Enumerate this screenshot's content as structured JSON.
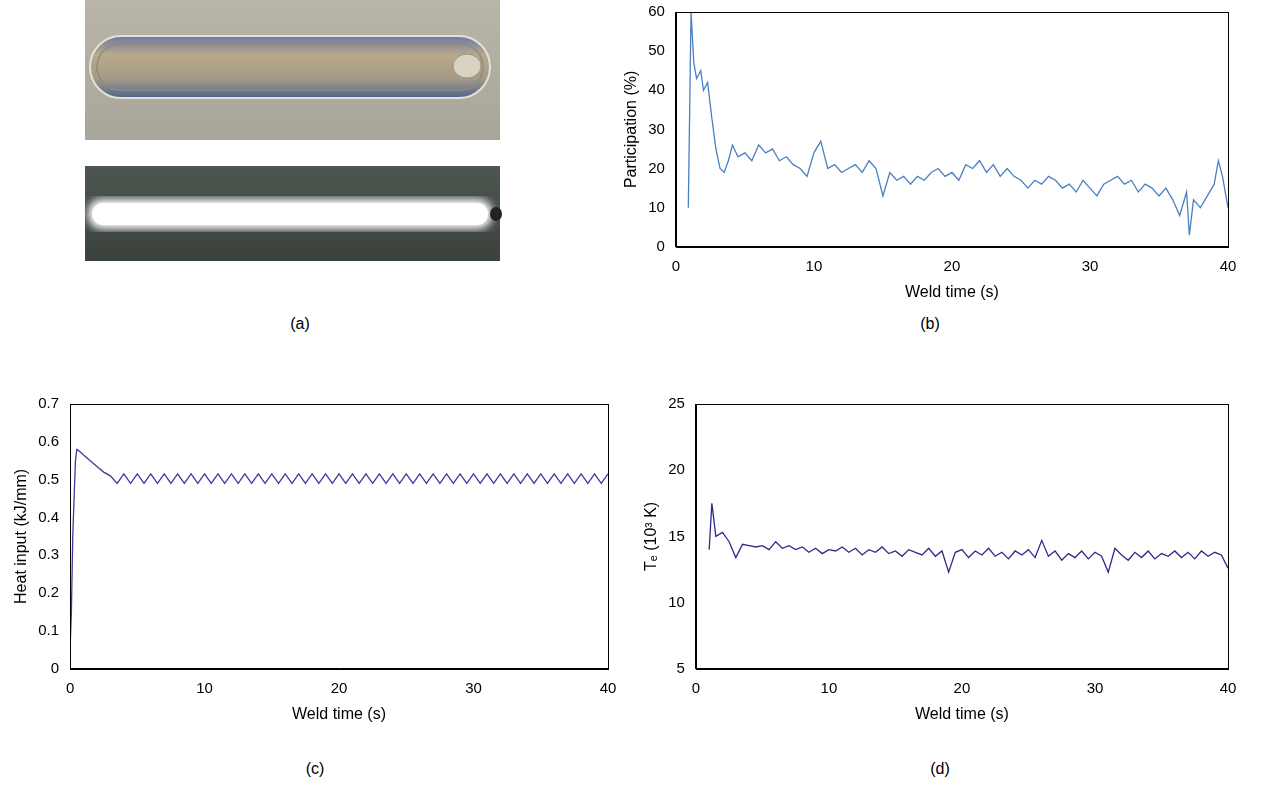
{
  "chart_data": [
    {
      "type": "image",
      "caption": "(a)"
    },
    {
      "type": "line",
      "caption": "(b)",
      "x_label": "Weld time (s)",
      "y_label": "Participation (%)",
      "xlim": [
        0,
        40
      ],
      "xticks": [
        0,
        10,
        20,
        30,
        40
      ],
      "ylim": [
        0,
        60
      ],
      "yticks": [
        0,
        10,
        20,
        30,
        40,
        50,
        60
      ],
      "grid": false,
      "series": [
        {
          "color": "#4a7fc1",
          "x": [
            0.9,
            1.1,
            1.3,
            1.5,
            1.8,
            2.0,
            2.3,
            2.6,
            2.9,
            3.2,
            3.5,
            3.8,
            4.1,
            4.5,
            5,
            5.5,
            6,
            6.5,
            7,
            7.5,
            8,
            8.5,
            9,
            9.5,
            10,
            10.5,
            11,
            11.5,
            12,
            12.5,
            13,
            13.5,
            14,
            14.5,
            15,
            15.5,
            16,
            16.5,
            17,
            17.5,
            18,
            18.5,
            19,
            19.5,
            20,
            20.5,
            21,
            21.5,
            22,
            22.5,
            23,
            23.5,
            24,
            24.5,
            25,
            25.5,
            26,
            26.5,
            27,
            27.5,
            28,
            28.5,
            29,
            29.5,
            30,
            30.5,
            31,
            31.5,
            32,
            32.5,
            33,
            33.5,
            34,
            34.5,
            35,
            35.5,
            36,
            36.5,
            37,
            37.2,
            37.5,
            38,
            38.5,
            39,
            39.3,
            39.6,
            40
          ],
          "values": [
            10,
            60,
            47,
            43,
            45,
            40,
            42,
            33,
            25,
            20,
            19,
            22,
            26,
            23,
            24,
            22,
            26,
            24,
            25,
            22,
            23,
            21,
            20,
            18,
            24,
            27,
            20,
            21,
            19,
            20,
            21,
            19,
            22,
            20,
            13,
            19,
            17,
            18,
            16,
            18,
            17,
            19,
            20,
            18,
            19,
            17,
            21,
            20,
            22,
            19,
            21,
            18,
            20,
            18,
            17,
            15,
            17,
            16,
            18,
            17,
            15,
            16,
            14,
            17,
            15,
            13,
            16,
            17,
            18,
            16,
            17,
            14,
            16,
            15,
            13,
            15,
            12,
            8,
            14,
            3,
            12,
            10,
            13,
            16,
            22,
            18,
            10
          ]
        }
      ]
    },
    {
      "type": "line",
      "caption": "(c)",
      "x_label": "Weld time (s)",
      "y_label": "Heat input (kJ/mm)",
      "xlim": [
        0,
        40
      ],
      "xticks": [
        0,
        10,
        20,
        30,
        40
      ],
      "ylim": [
        0,
        0.7
      ],
      "yticks": [
        0,
        0.1,
        0.2,
        0.3,
        0.4,
        0.5,
        0.6,
        0.7
      ],
      "grid": false,
      "series": [
        {
          "color": "#3b3b9c",
          "x": [
            0,
            0.1,
            0.2,
            0.3,
            0.4,
            0.5,
            0.7,
            1,
            1.5,
            2,
            2.5,
            3,
            3.5,
            4,
            4.5,
            5,
            5.5,
            6,
            6.5,
            7,
            7.5,
            8,
            8.5,
            9,
            9.5,
            10,
            10.5,
            11,
            11.5,
            12,
            12.5,
            13,
            13.5,
            14,
            14.5,
            15,
            15.5,
            16,
            16.5,
            17,
            17.5,
            18,
            18.5,
            19,
            19.5,
            20,
            20.5,
            21,
            21.5,
            22,
            22.5,
            23,
            23.5,
            24,
            24.5,
            25,
            25.5,
            26,
            26.5,
            27,
            27.5,
            28,
            28.5,
            29,
            29.5,
            30,
            30.5,
            31,
            31.5,
            32,
            32.5,
            33,
            33.5,
            34,
            34.5,
            35,
            35.5,
            36,
            36.5,
            37,
            37.5,
            38,
            38.5,
            39,
            39.5,
            40
          ],
          "values": [
            0.05,
            0.15,
            0.35,
            0.45,
            0.55,
            0.58,
            0.575,
            0.565,
            0.55,
            0.535,
            0.52,
            0.51,
            0.49,
            0.515,
            0.49,
            0.515,
            0.49,
            0.515,
            0.49,
            0.515,
            0.49,
            0.515,
            0.49,
            0.515,
            0.49,
            0.515,
            0.49,
            0.515,
            0.49,
            0.515,
            0.49,
            0.515,
            0.49,
            0.515,
            0.49,
            0.515,
            0.49,
            0.515,
            0.49,
            0.515,
            0.49,
            0.515,
            0.49,
            0.515,
            0.49,
            0.515,
            0.49,
            0.515,
            0.49,
            0.515,
            0.49,
            0.515,
            0.49,
            0.515,
            0.49,
            0.515,
            0.49,
            0.515,
            0.49,
            0.515,
            0.49,
            0.515,
            0.49,
            0.515,
            0.49,
            0.515,
            0.49,
            0.515,
            0.49,
            0.515,
            0.49,
            0.515,
            0.49,
            0.515,
            0.49,
            0.515,
            0.49,
            0.515,
            0.49,
            0.515,
            0.49,
            0.515,
            0.49,
            0.515,
            0.49,
            0.515
          ]
        }
      ]
    },
    {
      "type": "line",
      "caption": "(d)",
      "x_label": "Weld time (s)",
      "y_label": "Tₑ (10³ K)",
      "xlim": [
        0,
        40
      ],
      "xticks": [
        0,
        10,
        20,
        30,
        40
      ],
      "ylim": [
        5,
        25
      ],
      "yticks": [
        5,
        10,
        15,
        20,
        25
      ],
      "grid": false,
      "series": [
        {
          "color": "#2b2b8a",
          "x": [
            1,
            1.2,
            1.5,
            2,
            2.5,
            3,
            3.5,
            4,
            4.5,
            5,
            5.5,
            6,
            6.5,
            7,
            7.5,
            8,
            8.5,
            9,
            9.5,
            10,
            10.5,
            11,
            11.5,
            12,
            12.5,
            13,
            13.5,
            14,
            14.5,
            15,
            15.5,
            16,
            16.5,
            17,
            17.5,
            18,
            18.5,
            19,
            19.5,
            20,
            20.5,
            21,
            21.5,
            22,
            22.5,
            23,
            23.5,
            24,
            24.5,
            25,
            25.5,
            26,
            26.5,
            27,
            27.5,
            28,
            28.5,
            29,
            29.5,
            30,
            30.5,
            31,
            31.5,
            32,
            32.5,
            33,
            33.5,
            34,
            34.5,
            35,
            35.5,
            36,
            36.5,
            37,
            37.5,
            38,
            38.5,
            39,
            39.5,
            40
          ],
          "values": [
            14,
            17.5,
            15,
            15.3,
            14.6,
            13.4,
            14.4,
            14.3,
            14.2,
            14.3,
            14.0,
            14.6,
            14.1,
            14.3,
            14.0,
            14.2,
            13.8,
            14.1,
            13.7,
            14.0,
            13.9,
            14.2,
            13.8,
            14.1,
            13.6,
            14.0,
            13.8,
            14.2,
            13.7,
            13.9,
            13.5,
            14.0,
            13.8,
            13.6,
            14.1,
            13.5,
            13.9,
            12.3,
            13.8,
            14.0,
            13.4,
            13.9,
            13.6,
            14.1,
            13.5,
            13.8,
            13.3,
            13.9,
            13.6,
            14.0,
            13.4,
            14.7,
            13.5,
            13.9,
            13.2,
            13.7,
            13.4,
            13.9,
            13.3,
            13.8,
            13.5,
            12.3,
            14.1,
            13.6,
            13.2,
            13.8,
            13.4,
            13.9,
            13.3,
            13.7,
            13.5,
            13.9,
            13.4,
            13.8,
            13.3,
            13.9,
            13.5,
            13.8,
            13.6,
            12.6
          ]
        }
      ]
    }
  ]
}
